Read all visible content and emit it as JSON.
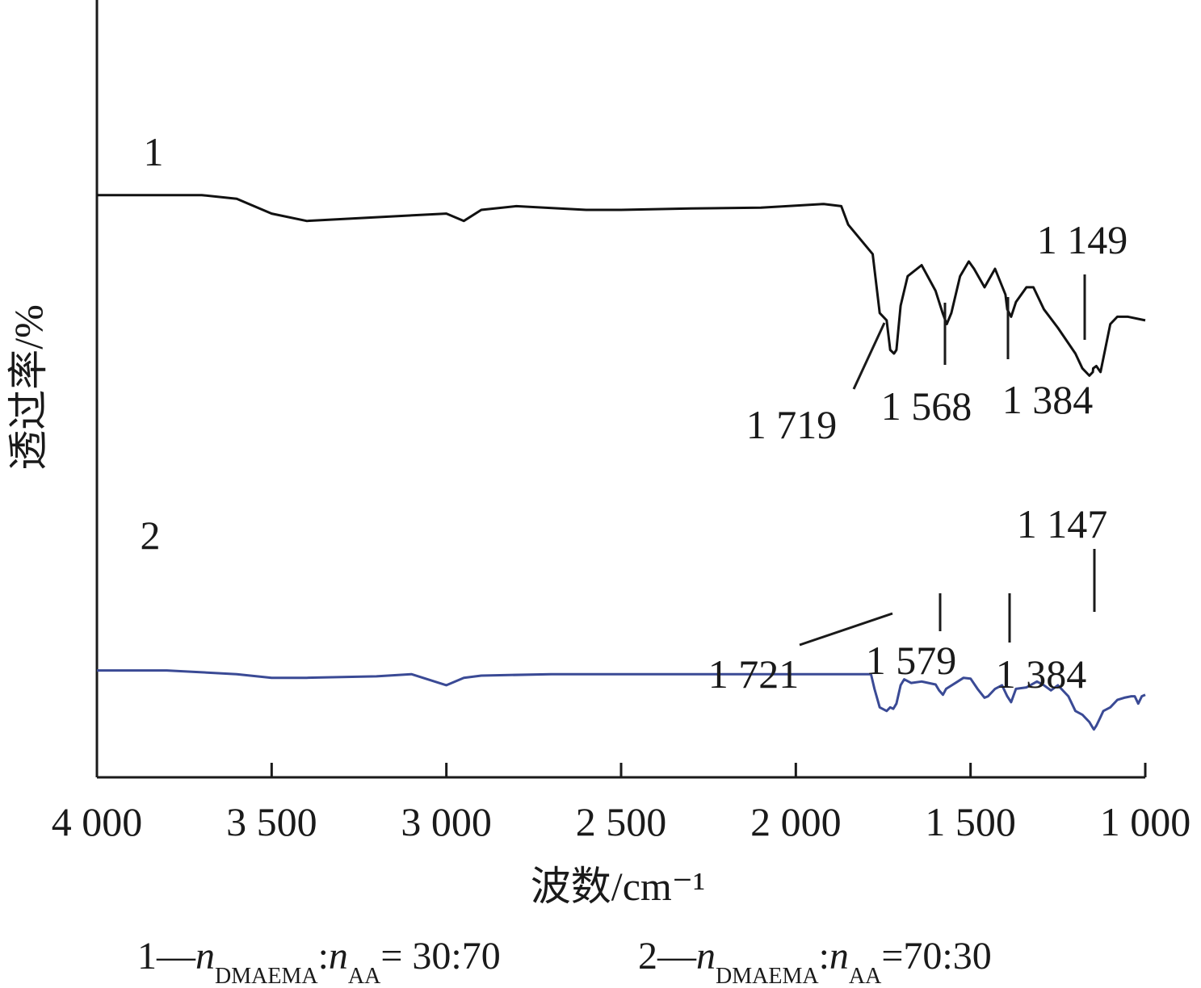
{
  "chart_data": {
    "type": "line",
    "xlabel": "波数/cm⁻¹",
    "ylabel": "透过率/%",
    "xlim": [
      4000,
      1000
    ],
    "x_reversed": true,
    "x_ticks": [
      4000,
      3500,
      3000,
      2500,
      2000,
      1500,
      1000
    ],
    "x_tick_labels": [
      "4 000",
      "3 500",
      "3 000",
      "2 500",
      "2 000",
      "1 500",
      "1 000"
    ],
    "y_ticks_shown": false,
    "ylim": [
      0,
      100
    ],
    "grid": false,
    "series": [
      {
        "name": "1",
        "color": "#111111",
        "x": [
          4000,
          3820,
          3700,
          3600,
          3500,
          3400,
          3200,
          3000,
          2950,
          2900,
          2800,
          2600,
          2500,
          2300,
          2100,
          1920,
          1870,
          1850,
          1780,
          1760,
          1740,
          1730,
          1719,
          1712,
          1700,
          1680,
          1640,
          1600,
          1580,
          1568,
          1555,
          1530,
          1505,
          1490,
          1460,
          1430,
          1400,
          1395,
          1384,
          1370,
          1340,
          1320,
          1290,
          1250,
          1200,
          1180,
          1160,
          1150,
          1149,
          1140,
          1128,
          1115,
          1100,
          1080,
          1050,
          1000
        ],
        "y": [
          79,
          79,
          79,
          78.5,
          76.5,
          75.5,
          76,
          76.5,
          75.5,
          77,
          77.5,
          77,
          77,
          77.2,
          77.3,
          77.8,
          77.5,
          75,
          71,
          63,
          62,
          58,
          57.5,
          58,
          64,
          68,
          69.5,
          66,
          63,
          61.5,
          63,
          68,
          70,
          69,
          66.5,
          69,
          65.5,
          63.5,
          62.5,
          64.5,
          66.5,
          66.5,
          63.5,
          61,
          57.5,
          55.5,
          54.5,
          55,
          55.5,
          55.8,
          55,
          58,
          61.5,
          62.5,
          62.5,
          62
        ]
      },
      {
        "name": "2",
        "color": "#3a4a95",
        "x": [
          4000,
          3800,
          3600,
          3500,
          3400,
          3200,
          3100,
          3000,
          2950,
          2900,
          2700,
          2500,
          2300,
          2100,
          1900,
          1785,
          1775,
          1760,
          1740,
          1730,
          1721,
          1712,
          1700,
          1690,
          1670,
          1640,
          1600,
          1590,
          1579,
          1570,
          1540,
          1520,
          1500,
          1480,
          1460,
          1450,
          1430,
          1410,
          1395,
          1384,
          1370,
          1340,
          1310,
          1290,
          1270,
          1250,
          1220,
          1200,
          1180,
          1160,
          1150,
          1147,
          1140,
          1130,
          1120,
          1100,
          1080,
          1060,
          1040,
          1030,
          1020,
          1010,
          1000
        ],
        "y": [
          14.5,
          14.5,
          14,
          13.5,
          13.5,
          13.7,
          14,
          12.5,
          13.5,
          13.8,
          14,
          14,
          14,
          14,
          14,
          14,
          12,
          9.5,
          9,
          9.5,
          9.3,
          10,
          12.5,
          13.3,
          12.8,
          13,
          12.6,
          11.8,
          11.2,
          12,
          12.9,
          13.5,
          13.4,
          12,
          10.8,
          11,
          12,
          12.5,
          11,
          10.2,
          12,
          12.2,
          13,
          12.5,
          11.8,
          12.5,
          11,
          9,
          8.5,
          7.5,
          6.7,
          6.5,
          7,
          8,
          9,
          9.5,
          10.5,
          10.8,
          11,
          11,
          10,
          11,
          11.2
        ]
      }
    ],
    "series_labels": [
      "1",
      "2"
    ],
    "annotations": [
      {
        "series": "1",
        "x": 1719,
        "text": "1 719"
      },
      {
        "series": "1",
        "x": 1568,
        "text": "1 568"
      },
      {
        "series": "1",
        "x": 1384,
        "text": "1 384"
      },
      {
        "series": "1",
        "x": 1149,
        "text": "1 149"
      },
      {
        "series": "2",
        "x": 1721,
        "text": "1 721"
      },
      {
        "series": "2",
        "x": 1579,
        "text": "1 579"
      },
      {
        "series": "2",
        "x": 1384,
        "text": "1 384"
      },
      {
        "series": "2",
        "x": 1147,
        "text": "1 147"
      }
    ],
    "legend": {
      "placement": "bottom",
      "items": [
        {
          "prefix": "1—",
          "n1": "n",
          "sub1": "DMAEMA",
          "colon": ":",
          "n2": "n",
          "sub2": "AA",
          "value": "= 30:70"
        },
        {
          "prefix": "2—",
          "n1": "n",
          "sub1": "DMAEMA",
          "colon": ":",
          "n2": "n",
          "sub2": "AA",
          "value": "=70:30"
        }
      ]
    }
  }
}
